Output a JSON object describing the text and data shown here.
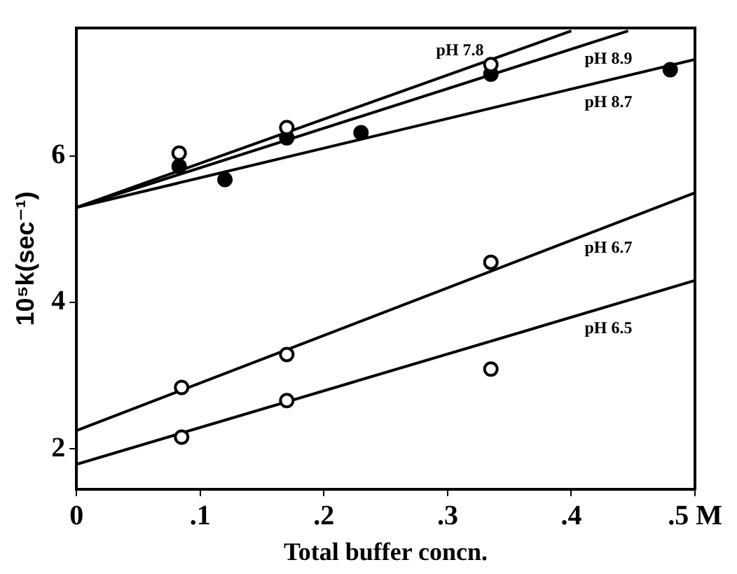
{
  "chart_data": {
    "type": "scatter",
    "xlabel": "Total buffer concn.",
    "ylabel": "10⁵k(sec⁻¹)",
    "xlim": [
      0,
      0.5
    ],
    "ylim": [
      1.45,
      7.75
    ],
    "xticks": [
      0,
      {
        "value": 0.1,
        "label": ".1"
      },
      {
        "value": 0.2,
        "label": ".2"
      },
      {
        "value": 0.3,
        "label": ".3"
      },
      {
        "value": 0.4,
        "label": ".4"
      },
      {
        "value": 0.5,
        "label": ".5 M"
      }
    ],
    "yticks": [
      2,
      4,
      6
    ],
    "grid": false,
    "legend": false,
    "marker": "circle",
    "series": [
      {
        "type": "line",
        "name": "pH 7.8",
        "color": "#000000",
        "marker": "none",
        "x": [
          0,
          0.4
        ],
        "values": [
          5.3,
          7.71
        ]
      },
      {
        "type": "line",
        "name": "pH 8.9",
        "color": "#000000",
        "marker": "none",
        "x": [
          0,
          0.446
        ],
        "values": [
          5.3,
          7.71
        ]
      },
      {
        "type": "line",
        "name": "pH 8.7",
        "color": "#000000",
        "marker": "none",
        "x": [
          0,
          0.5
        ],
        "values": [
          5.3,
          7.32
        ]
      },
      {
        "type": "line",
        "name": "pH 6.7",
        "color": "#000000",
        "marker": "none",
        "x": [
          0,
          0.5
        ],
        "values": [
          2.25,
          5.5
        ]
      },
      {
        "type": "line",
        "name": "pH 6.5",
        "color": "#000000",
        "marker": "none",
        "x": [
          0,
          0.5
        ],
        "values": [
          1.79,
          4.3
        ]
      },
      {
        "type": "scatter",
        "color": "#ffffff",
        "x": [
          0.083,
          0.17,
          0.335
        ],
        "values": [
          6.04,
          6.39,
          7.25
        ]
      },
      {
        "type": "scatter",
        "color": "#000000",
        "x": [
          0.083,
          0.17,
          0.335
        ],
        "values": [
          5.86,
          6.25,
          7.12
        ]
      },
      {
        "type": "scatter",
        "color": "#000000",
        "x": [
          0.12,
          0.23,
          0.48
        ],
        "values": [
          5.68,
          6.32,
          7.18
        ]
      },
      {
        "type": "scatter",
        "color": "#ffffff",
        "x": [
          0.085,
          0.17,
          0.335
        ],
        "values": [
          2.84,
          3.29,
          4.55
        ]
      },
      {
        "type": "scatter",
        "color": "#ffffff",
        "x": [
          0.085,
          0.17,
          0.335
        ],
        "values": [
          2.16,
          2.66,
          3.09
        ]
      }
    ]
  }
}
